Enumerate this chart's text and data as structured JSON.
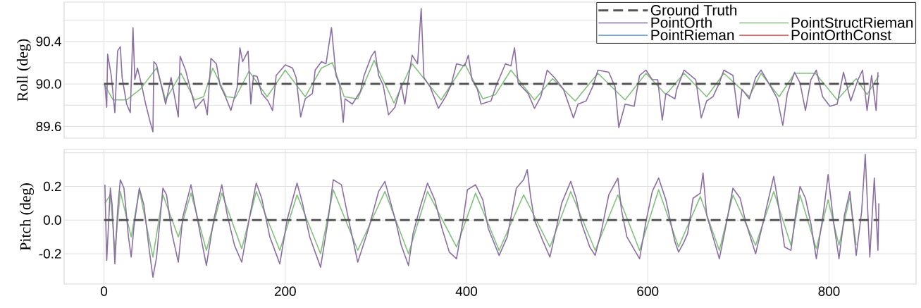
{
  "chart_data": [
    {
      "type": "line",
      "ylabel": "Roll (deg)",
      "xlim": [
        -44,
        896
      ],
      "ylim": [
        89.49,
        90.77
      ],
      "xticks": [
        0,
        200,
        400,
        600,
        800
      ],
      "yticks": [
        {
          "value": 89.6,
          "label": "89.6"
        },
        {
          "value": 89.8,
          "label": null
        },
        {
          "value": 90.0,
          "label": "90.0"
        },
        {
          "value": 90.2,
          "label": null
        },
        {
          "value": 90.4,
          "label": "90.4"
        },
        {
          "value": 90.6,
          "label": null
        }
      ],
      "tick_labels": "y",
      "grid": true,
      "legend": "top right",
      "marker": "none",
      "series": [
        {
          "name": "Ground Truth",
          "color": "#555555",
          "line_style": "dashed",
          "x": [
            0,
            855
          ],
          "values": [
            90.0,
            90.0
          ]
        },
        {
          "name": "PointOrth",
          "color": "#8b6ea3",
          "line_style": "solid",
          "x": [
            1,
            3,
            4,
            8,
            12,
            15,
            18,
            20,
            25,
            29,
            32,
            34,
            37,
            42,
            46,
            51,
            54,
            55,
            58,
            68,
            74,
            82,
            84,
            90,
            96,
            101,
            110,
            114,
            118,
            124,
            128,
            134,
            140,
            147,
            150,
            153,
            159,
            162,
            165,
            169,
            174,
            181,
            186,
            190,
            200,
            208,
            212,
            217,
            222,
            230,
            233,
            240,
            245,
            251,
            256,
            260,
            264,
            266,
            274,
            283,
            287,
            295,
            299,
            303,
            308,
            314,
            321,
            328,
            332,
            336,
            340,
            346,
            350,
            353,
            360,
            369,
            377,
            383,
            389,
            398,
            402,
            406,
            412,
            416,
            427,
            433,
            443,
            449,
            453,
            457,
            468,
            475,
            482,
            489,
            497,
            507,
            518,
            523,
            532,
            540,
            545,
            557,
            564,
            568,
            575,
            585,
            591,
            598,
            605,
            611,
            616,
            620,
            630,
            632,
            640,
            653,
            659,
            665,
            672,
            679,
            684,
            694,
            700,
            704,
            712,
            719,
            725,
            736,
            743,
            749,
            754,
            762,
            768,
            774,
            780,
            786,
            793,
            801,
            809,
            816,
            824,
            832,
            837,
            842,
            847,
            852,
            854
          ],
          "values": [
            90.0,
            89.78,
            90.28,
            90.08,
            89.73,
            90.31,
            90.35,
            90.06,
            89.81,
            89.73,
            90.53,
            90.04,
            90.15,
            89.97,
            89.81,
            89.64,
            89.55,
            90.21,
            90.18,
            89.81,
            90.06,
            89.69,
            90.26,
            90.13,
            89.93,
            89.77,
            89.86,
            89.71,
            90.24,
            90.19,
            89.99,
            89.88,
            89.75,
            89.97,
            90.34,
            90.21,
            90.31,
            89.81,
            90.08,
            90.07,
            89.91,
            89.84,
            89.75,
            90.08,
            90.18,
            90.15,
            90.06,
            89.69,
            89.86,
            89.91,
            90.13,
            90.21,
            90.19,
            90.53,
            90.08,
            89.99,
            89.64,
            89.86,
            89.81,
            89.93,
            90.08,
            90.26,
            90.31,
            90.08,
            89.99,
            89.71,
            89.78,
            89.99,
            89.81,
            90.06,
            90.27,
            90.19,
            90.71,
            90.06,
            89.97,
            89.77,
            89.88,
            89.99,
            90.19,
            90.17,
            90.27,
            90.04,
            89.95,
            89.81,
            89.84,
            89.99,
            90.19,
            90.17,
            90.34,
            90.01,
            89.91,
            89.77,
            89.88,
            90.13,
            90.06,
            89.95,
            89.68,
            89.81,
            89.84,
            89.99,
            90.13,
            90.11,
            89.97,
            89.59,
            89.81,
            89.79,
            90.08,
            90.13,
            90.04,
            90.04,
            89.66,
            89.91,
            89.86,
            89.95,
            90.13,
            90.04,
            89.68,
            89.84,
            89.88,
            90.01,
            90.13,
            90.08,
            89.68,
            89.95,
            89.86,
            90.06,
            90.13,
            89.97,
            89.86,
            89.61,
            89.91,
            90.11,
            90.01,
            89.75,
            90.04,
            90.13,
            89.88,
            89.79,
            89.81,
            90.11,
            89.84,
            90.04,
            90.13,
            89.75,
            90.08,
            89.75,
            90.11
          ]
        },
        {
          "name": "PointRieman",
          "color": "#6fa8dc",
          "line_style": "solid"
        },
        {
          "name": "PointStructRieman",
          "color": "#82c17c",
          "line_style": "solid",
          "x": [
            0,
            10,
            25,
            40,
            58,
            68,
            85,
            100,
            110,
            120,
            135,
            145,
            160,
            180,
            200,
            222,
            240,
            252,
            265,
            280,
            298,
            320,
            340,
            372,
            398,
            418,
            432,
            449,
            475,
            495,
            520,
            545,
            575,
            598,
            620,
            640,
            665,
            684,
            712,
            725,
            745,
            762,
            785,
            809,
            830,
            842,
            855
          ],
          "values": [
            90.0,
            89.85,
            89.85,
            89.95,
            90.15,
            89.85,
            90.1,
            89.85,
            89.88,
            90.15,
            89.88,
            89.87,
            90.12,
            89.88,
            90.13,
            89.88,
            90.15,
            90.2,
            89.88,
            89.86,
            90.22,
            89.82,
            90.19,
            89.85,
            90.19,
            89.86,
            89.9,
            90.13,
            89.85,
            90.05,
            89.84,
            90.1,
            89.85,
            90.1,
            89.9,
            90.1,
            89.88,
            90.1,
            89.88,
            90.1,
            89.88,
            90.1,
            90.1,
            89.85,
            90.05,
            89.9,
            90.08
          ]
        },
        {
          "name": "PointOrthConst",
          "color": "#e06666",
          "line_style": "solid"
        }
      ]
    },
    {
      "type": "line",
      "ylabel": "Pitch (deg)",
      "xlim": [
        -44,
        896
      ],
      "ylim": [
        -0.38,
        0.42
      ],
      "xticks": [
        0,
        200,
        400,
        600,
        800
      ],
      "yticks": [
        {
          "value": -0.2,
          "label": "-0.2"
        },
        {
          "value": 0.0,
          "label": "0.0"
        },
        {
          "value": 0.2,
          "label": "0.2"
        },
        {
          "value": 0.4,
          "label": null
        }
      ],
      "grid": true,
      "marker": "none",
      "series": [
        {
          "color": "#555555",
          "line_style": "dashed",
          "x": [
            0,
            855
          ],
          "values": [
            0.0,
            0.0
          ]
        },
        {
          "color": "#8b6ea3",
          "line_style": "solid",
          "x": [
            1,
            3,
            7,
            9,
            12,
            15,
            18,
            22,
            27,
            30,
            33,
            39,
            44,
            50,
            54,
            58,
            65,
            69,
            75,
            82,
            87,
            96,
            104,
            113,
            121,
            130,
            136,
            144,
            152,
            160,
            168,
            174,
            183,
            194,
            202,
            213,
            219,
            227,
            239,
            247,
            253,
            262,
            270,
            280,
            292,
            297,
            303,
            310,
            315,
            322,
            328,
            336,
            341,
            349,
            357,
            365,
            373,
            381,
            389,
            396,
            401,
            410,
            418,
            424,
            436,
            445,
            455,
            463,
            467,
            471,
            475,
            484,
            492,
            497,
            505,
            515,
            521,
            527,
            536,
            542,
            549,
            557,
            567,
            571,
            577,
            591,
            598,
            605,
            612,
            620,
            630,
            634,
            640,
            644,
            650,
            658,
            661,
            665,
            672,
            679,
            686,
            694,
            702,
            708,
            719,
            727,
            739,
            743,
            751,
            758,
            763,
            768,
            774,
            780,
            786,
            794,
            799,
            805,
            811,
            817,
            823,
            830,
            836,
            840,
            845,
            850,
            854,
            855
          ],
          "values": [
            0.21,
            -0.24,
            0.19,
            0.09,
            -0.26,
            0.06,
            0.24,
            0.19,
            -0.1,
            -0.22,
            -0.04,
            0.19,
            0.09,
            -0.18,
            -0.34,
            -0.22,
            0.19,
            0.15,
            -0.08,
            -0.25,
            0.02,
            0.21,
            -0.02,
            -0.27,
            0.0,
            0.21,
            0.03,
            -0.15,
            -0.25,
            0.0,
            0.22,
            0.13,
            -0.1,
            -0.26,
            0.0,
            0.22,
            0.1,
            -0.1,
            -0.28,
            -0.01,
            0.24,
            0.21,
            0.0,
            -0.25,
            -0.05,
            0.05,
            0.17,
            0.23,
            0.13,
            -0.01,
            -0.15,
            -0.27,
            -0.08,
            0.08,
            0.22,
            0.12,
            -0.05,
            -0.19,
            -0.23,
            -0.01,
            0.18,
            0.21,
            0.12,
            -0.05,
            -0.21,
            -0.1,
            0.19,
            0.24,
            0.3,
            0.13,
            0.0,
            -0.12,
            -0.22,
            -0.1,
            0.1,
            0.23,
            0.13,
            -0.02,
            -0.16,
            -0.21,
            -0.06,
            0.15,
            0.25,
            0.06,
            -0.1,
            -0.23,
            -0.01,
            0.17,
            0.25,
            0.12,
            -0.13,
            -0.19,
            -0.13,
            -0.08,
            0.13,
            0.16,
            0.28,
            0.03,
            -0.1,
            -0.23,
            -0.04,
            0.19,
            0.13,
            -0.01,
            -0.2,
            -0.02,
            0.26,
            0.13,
            -0.16,
            -0.18,
            0.03,
            0.2,
            0.13,
            -0.02,
            -0.23,
            0.05,
            0.27,
            -0.01,
            -0.23,
            0.03,
            0.17,
            -0.21,
            0.05,
            0.39,
            -0.22,
            0.25,
            -0.18,
            0.1
          ]
        },
        {
          "color": "#82c17c",
          "line_style": "solid",
          "x": [
            1,
            7,
            12,
            18,
            30,
            39,
            54,
            65,
            82,
            96,
            113,
            130,
            152,
            168,
            194,
            213,
            239,
            253,
            280,
            310,
            336,
            357,
            389,
            410,
            436,
            463,
            492,
            515,
            542,
            567,
            591,
            612,
            634,
            658,
            679,
            694,
            719,
            739,
            758,
            768,
            786,
            799,
            811,
            823,
            830
          ],
          "values": [
            0.1,
            0.15,
            -0.18,
            0.17,
            -0.1,
            0.18,
            -0.22,
            0.15,
            -0.1,
            0.16,
            -0.18,
            0.16,
            -0.17,
            0.17,
            -0.18,
            0.15,
            -0.2,
            0.18,
            -0.18,
            0.17,
            -0.2,
            0.17,
            -0.16,
            0.16,
            -0.18,
            0.15,
            -0.16,
            0.17,
            -0.18,
            0.15,
            -0.18,
            0.18,
            -0.16,
            0.14,
            -0.18,
            0.15,
            -0.15,
            0.17,
            -0.15,
            0.15,
            -0.17,
            0.12,
            -0.15,
            0.14,
            -0.15
          ]
        }
      ]
    }
  ]
}
